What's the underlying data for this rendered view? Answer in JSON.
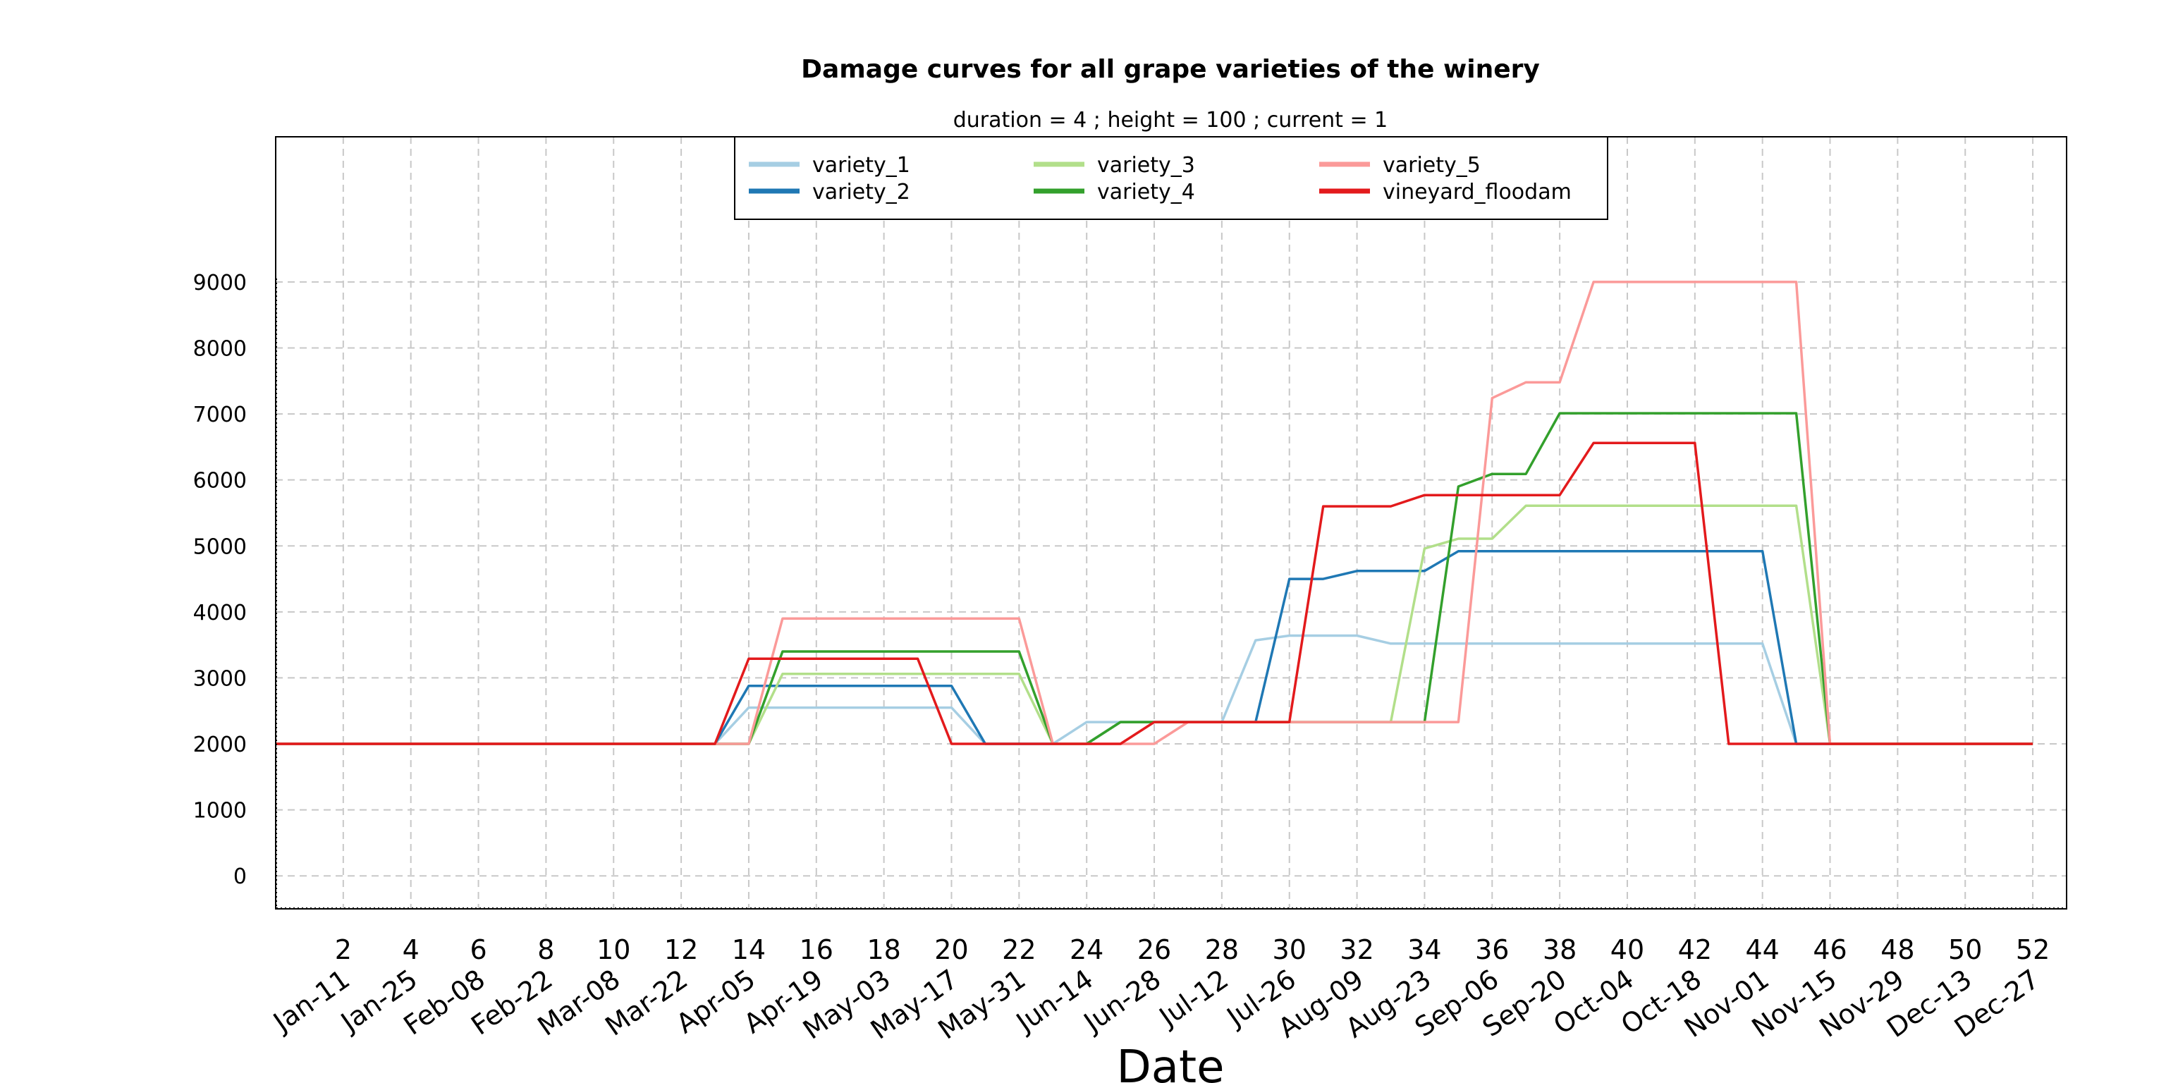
{
  "chart_data": {
    "type": "line",
    "title": "Damage curves for all grape varieties of the winery",
    "subtitle": "duration = 4 ; height = 100 ; current = 1",
    "xlabel": "Date",
    "ylabel": "",
    "xlim": [
      0,
      53
    ],
    "ylim": [
      -500,
      11200
    ],
    "x_ticks": [
      2,
      4,
      6,
      8,
      10,
      12,
      14,
      16,
      18,
      20,
      22,
      24,
      26,
      28,
      30,
      32,
      34,
      36,
      38,
      40,
      42,
      44,
      46,
      48,
      50,
      52
    ],
    "x_ticks_numeric_labels": [
      "2",
      "4",
      "6",
      "8",
      "10",
      "12",
      "14",
      "16",
      "18",
      "20",
      "22",
      "24",
      "26",
      "28",
      "30",
      "32",
      "34",
      "36",
      "38",
      "40",
      "42",
      "44",
      "46",
      "48",
      "50",
      "52"
    ],
    "x_ticks_date_labels": [
      "Jan-11",
      "Jan-25",
      "Feb-08",
      "Feb-22",
      "Mar-08",
      "Mar-22",
      "Apr-05",
      "Apr-19",
      "May-03",
      "May-17",
      "May-31",
      "Jun-14",
      "Jun-28",
      "Jul-12",
      "Jul-26",
      "Aug-09",
      "Aug-23",
      "Sep-06",
      "Sep-20",
      "Oct-04",
      "Oct-18",
      "Nov-01",
      "Nov-15",
      "Nov-29",
      "Dec-13",
      "Dec-27"
    ],
    "y_ticks": [
      0,
      1000,
      2000,
      3000,
      4000,
      5000,
      6000,
      7000,
      8000,
      9000
    ],
    "y_tick_labels": [
      "0",
      "1000",
      "2000",
      "3000",
      "4000",
      "5000",
      "6000",
      "7000",
      "8000",
      "9000"
    ],
    "grid": true,
    "legend_position": "top-center",
    "x": [
      0,
      1,
      2,
      3,
      4,
      5,
      6,
      7,
      8,
      9,
      10,
      11,
      12,
      13,
      14,
      15,
      16,
      17,
      18,
      19,
      20,
      21,
      22,
      23,
      24,
      25,
      26,
      27,
      28,
      29,
      30,
      31,
      32,
      33,
      34,
      35,
      36,
      37,
      38,
      39,
      40,
      41,
      42,
      43,
      44,
      45,
      46,
      47,
      48,
      49,
      50,
      51,
      52
    ],
    "series": [
      {
        "name": "variety_1",
        "color": "#a6cee3",
        "values": [
          2000,
          2000,
          2000,
          2000,
          2000,
          2000,
          2000,
          2000,
          2000,
          2000,
          2000,
          2000,
          2000,
          2000,
          2550,
          2550,
          2550,
          2550,
          2550,
          2550,
          2550,
          2000,
          2000,
          2000,
          2330,
          2330,
          2330,
          2330,
          2330,
          3570,
          3640,
          3640,
          3640,
          3520,
          3520,
          3520,
          3520,
          3520,
          3520,
          3520,
          3520,
          3520,
          3520,
          3520,
          3520,
          2000,
          2000,
          2000,
          2000,
          2000,
          2000,
          2000,
          2000
        ]
      },
      {
        "name": "variety_2",
        "color": "#1f78b4",
        "values": [
          2000,
          2000,
          2000,
          2000,
          2000,
          2000,
          2000,
          2000,
          2000,
          2000,
          2000,
          2000,
          2000,
          2000,
          2880,
          2880,
          2880,
          2880,
          2880,
          2880,
          2880,
          2000,
          2000,
          2000,
          2000,
          2330,
          2330,
          2330,
          2330,
          2330,
          4500,
          4500,
          4620,
          4620,
          4620,
          4920,
          4920,
          4920,
          4920,
          4920,
          4920,
          4920,
          4920,
          4920,
          4920,
          2000,
          2000,
          2000,
          2000,
          2000,
          2000,
          2000,
          2000
        ]
      },
      {
        "name": "variety_3",
        "color": "#b2df8a",
        "values": [
          2000,
          2000,
          2000,
          2000,
          2000,
          2000,
          2000,
          2000,
          2000,
          2000,
          2000,
          2000,
          2000,
          2000,
          2000,
          3060,
          3060,
          3060,
          3060,
          3060,
          3060,
          3060,
          3060,
          2000,
          2000,
          2330,
          2330,
          2330,
          2330,
          2330,
          2330,
          2330,
          2330,
          2330,
          4960,
          5110,
          5110,
          5610,
          5610,
          5610,
          5610,
          5610,
          5610,
          5610,
          5610,
          5610,
          2000,
          2000,
          2000,
          2000,
          2000,
          2000,
          2000
        ]
      },
      {
        "name": "variety_4",
        "color": "#33a02c",
        "values": [
          2000,
          2000,
          2000,
          2000,
          2000,
          2000,
          2000,
          2000,
          2000,
          2000,
          2000,
          2000,
          2000,
          2000,
          2000,
          3400,
          3400,
          3400,
          3400,
          3400,
          3400,
          3400,
          3400,
          2000,
          2000,
          2330,
          2330,
          2330,
          2330,
          2330,
          2330,
          2330,
          2330,
          2330,
          2330,
          5900,
          6090,
          6090,
          7010,
          7010,
          7010,
          7010,
          7010,
          7010,
          7010,
          7010,
          2000,
          2000,
          2000,
          2000,
          2000,
          2000,
          2000
        ]
      },
      {
        "name": "variety_5",
        "color": "#fb9a99",
        "values": [
          2000,
          2000,
          2000,
          2000,
          2000,
          2000,
          2000,
          2000,
          2000,
          2000,
          2000,
          2000,
          2000,
          2000,
          2000,
          3900,
          3900,
          3900,
          3900,
          3900,
          3900,
          3900,
          3900,
          2000,
          2000,
          2000,
          2000,
          2330,
          2330,
          2330,
          2330,
          2330,
          2330,
          2330,
          2330,
          2330,
          7240,
          7480,
          7480,
          9000,
          9000,
          9000,
          9000,
          9000,
          9000,
          9000,
          2000,
          2000,
          2000,
          2000,
          2000,
          2000,
          2000
        ]
      },
      {
        "name": "vineyard_floodam",
        "color": "#e31a1c",
        "values": [
          2000,
          2000,
          2000,
          2000,
          2000,
          2000,
          2000,
          2000,
          2000,
          2000,
          2000,
          2000,
          2000,
          2000,
          3290,
          3290,
          3290,
          3290,
          3290,
          3290,
          2000,
          2000,
          2000,
          2000,
          2000,
          2000,
          2330,
          2330,
          2330,
          2330,
          2330,
          5600,
          5600,
          5600,
          5770,
          5770,
          5770,
          5770,
          5770,
          6560,
          6560,
          6560,
          6560,
          2000,
          2000,
          2000,
          2000,
          2000,
          2000,
          2000,
          2000,
          2000,
          2000
        ]
      }
    ]
  }
}
